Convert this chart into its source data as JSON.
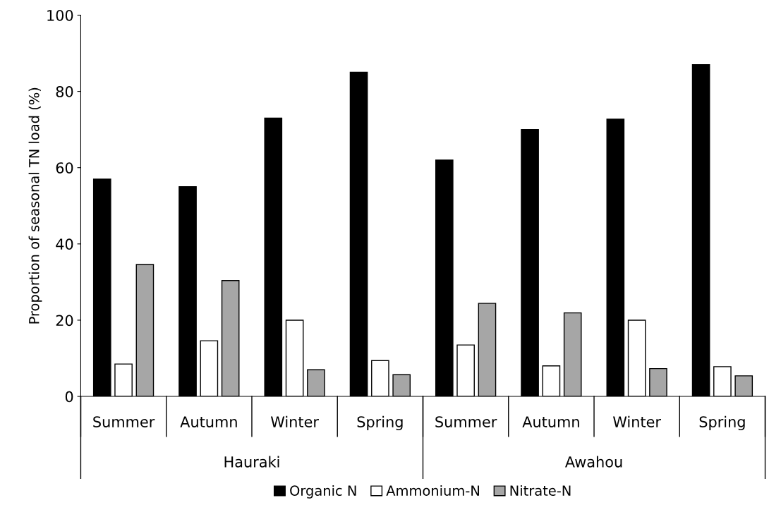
{
  "chart_data": {
    "type": "bar",
    "ylabel": "Proportion of seasonal TN load (%)",
    "categories": [
      "Summer",
      "Autumn",
      "Winter",
      "Spring",
      "Summer",
      "Autumn",
      "Winter",
      "Spring"
    ],
    "annotations": [
      "Hauraki",
      "Awahou"
    ],
    "series": [
      {
        "name": "Organic N",
        "color": "#000000",
        "values": [
          57,
          55,
          73,
          85,
          62,
          70,
          72.7,
          87
        ]
      },
      {
        "name": "Ammonium-N",
        "color": "#ffffff",
        "values": [
          8.5,
          14.6,
          20,
          9.4,
          13.5,
          8,
          20,
          7.8
        ]
      },
      {
        "name": "Nitrate-N",
        "color": "#a6a6a6",
        "values": [
          34.6,
          30.4,
          7,
          5.7,
          24.4,
          21.9,
          7.3,
          5.4
        ]
      }
    ],
    "ylim": [
      0,
      100
    ],
    "yticks": [
      0,
      20,
      40,
      60,
      80,
      100
    ],
    "grid": false,
    "legend": "bottom"
  }
}
